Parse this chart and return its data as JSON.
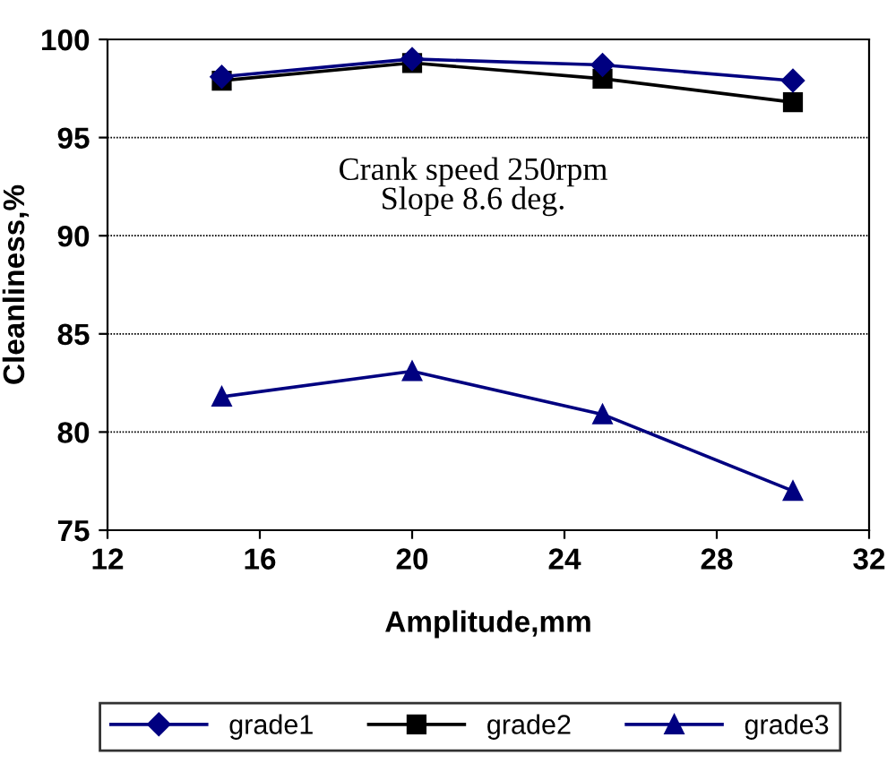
{
  "chart_data": {
    "type": "line",
    "xlabel": "Amplitude,mm",
    "ylabel": "Cleanliness,%",
    "x": [
      15,
      20,
      25,
      30
    ],
    "series": [
      {
        "name": "grade1",
        "color": "#000080",
        "values": [
          98.1,
          99.0,
          98.7,
          97.9
        ],
        "marker": "diamond"
      },
      {
        "name": "grade2",
        "color": "#000000",
        "values": [
          97.9,
          98.8,
          98.0,
          96.8
        ],
        "marker": "square"
      },
      {
        "name": "grade3",
        "color": "#000080",
        "values": [
          81.8,
          83.1,
          80.9,
          77.0
        ],
        "marker": "triangle"
      }
    ],
    "xlim": [
      12,
      32
    ],
    "xticks": [
      12,
      16,
      20,
      24,
      28,
      32
    ],
    "ylim": [
      75,
      100
    ],
    "yticks": [
      75,
      80,
      85,
      90,
      95,
      100
    ],
    "grid": "y",
    "legend": "bottom",
    "line_style": "solid",
    "annotations": [
      "Crank speed 250rpm\nSlope 8.6 deg."
    ]
  }
}
